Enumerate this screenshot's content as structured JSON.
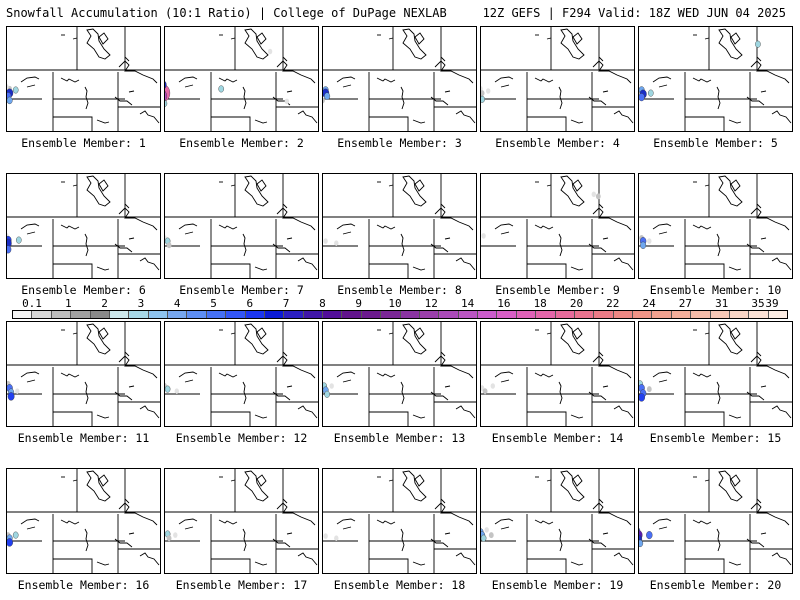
{
  "header": {
    "title_left": "Snowfall Accumulation (10:1 Ratio) | College of DuPage NEXLAB",
    "title_right": "12Z GEFS | F294 Valid: 18Z WED JUN 04 2025"
  },
  "panels": [
    {
      "label": "Ensemble Member: 1",
      "snow": [
        [
          0.2,
          0.48,
          1
        ],
        [
          0.2,
          0.52,
          6
        ],
        [
          0.19,
          0.55,
          4
        ],
        [
          0.2,
          0.59,
          3
        ],
        [
          0.18,
          0.46,
          0.1
        ],
        [
          0.24,
          0.49,
          2
        ]
      ]
    },
    {
      "label": "Ensemble Member: 2",
      "snow": [
        [
          0.1,
          0.48,
          4
        ],
        [
          0.13,
          0.52,
          24
        ],
        [
          0.12,
          0.55,
          16
        ],
        [
          0.11,
          0.58,
          8
        ],
        [
          0.15,
          0.6,
          4
        ],
        [
          0.14,
          0.62,
          2
        ],
        [
          0.16,
          0.49,
          1
        ],
        [
          0.17,
          0.44,
          6
        ],
        [
          0.87,
          0.12,
          0.1
        ],
        [
          0.98,
          0.6,
          0.1
        ],
        [
          0.55,
          0.48,
          2
        ]
      ]
    },
    {
      "label": "Ensemble Member: 3",
      "snow": [
        [
          0.2,
          0.49,
          3
        ],
        [
          0.2,
          0.52,
          6
        ],
        [
          0.21,
          0.55,
          3
        ],
        [
          0.18,
          0.59,
          1
        ],
        [
          0.1,
          0.48,
          0.1
        ]
      ]
    },
    {
      "label": "Ensemble Member: 4",
      "snow": [
        [
          0.18,
          0.48,
          0.1
        ],
        [
          0.19,
          0.52,
          1
        ],
        [
          0.19,
          0.58,
          2
        ],
        [
          0.23,
          0.5,
          0.1
        ]
      ]
    },
    {
      "label": "Ensemble Member: 5",
      "snow": [
        [
          0.2,
          0.49,
          3
        ],
        [
          0.21,
          0.53,
          6
        ],
        [
          0.2,
          0.56,
          4
        ],
        [
          0.26,
          0.52,
          2
        ],
        [
          0.12,
          0.48,
          0.1
        ],
        [
          0.96,
          0.05,
          2
        ]
      ]
    },
    {
      "label": "Ensemble Member: 6",
      "snow": [
        [
          0.18,
          0.48,
          0.1
        ],
        [
          0.19,
          0.52,
          5
        ],
        [
          0.19,
          0.55,
          6
        ],
        [
          0.19,
          0.61,
          4
        ],
        [
          0.26,
          0.52,
          2
        ]
      ]
    },
    {
      "label": "Ensemble Member: 7",
      "snow": [
        [
          0.18,
          0.5,
          0.1
        ],
        [
          0.2,
          0.53,
          2
        ],
        [
          0.21,
          0.57,
          1
        ]
      ]
    },
    {
      "label": "Ensemble Member: 8",
      "snow": [
        [
          0.2,
          0.53,
          0.1
        ],
        [
          0.27,
          0.55,
          0.1
        ]
      ]
    },
    {
      "label": "Ensemble Member: 9",
      "snow": [
        [
          0.2,
          0.48,
          0.1
        ],
        [
          0.92,
          0.08,
          0.1
        ],
        [
          0.95,
          0.1,
          1
        ]
      ]
    },
    {
      "label": "Ensemble Member: 10",
      "snow": [
        [
          0.2,
          0.5,
          1
        ],
        [
          0.21,
          0.53,
          4
        ],
        [
          0.21,
          0.57,
          3
        ],
        [
          0.25,
          0.53,
          0.1
        ]
      ]
    },
    {
      "label": "Ensemble Member: 11",
      "snow": [
        [
          0.19,
          0.48,
          1
        ],
        [
          0.2,
          0.52,
          4
        ],
        [
          0.21,
          0.56,
          3
        ],
        [
          0.21,
          0.6,
          5
        ],
        [
          0.25,
          0.55,
          0.1
        ]
      ]
    },
    {
      "label": "Ensemble Member: 12",
      "snow": [
        [
          0.18,
          0.5,
          1
        ],
        [
          0.2,
          0.53,
          2
        ],
        [
          0.26,
          0.55,
          0.1
        ]
      ]
    },
    {
      "label": "Ensemble Member: 13",
      "snow": [
        [
          0.19,
          0.5,
          2
        ],
        [
          0.2,
          0.54,
          3
        ],
        [
          0.21,
          0.58,
          2
        ],
        [
          0.24,
          0.5,
          0.1
        ]
      ]
    },
    {
      "label": "Ensemble Member: 14",
      "snow": [
        [
          0.19,
          0.52,
          0.1
        ],
        [
          0.21,
          0.55,
          1
        ],
        [
          0.26,
          0.5,
          0.1
        ]
      ]
    },
    {
      "label": "Ensemble Member: 15",
      "snow": [
        [
          0.19,
          0.48,
          2
        ],
        [
          0.2,
          0.52,
          4
        ],
        [
          0.21,
          0.57,
          4
        ],
        [
          0.2,
          0.61,
          5
        ],
        [
          0.25,
          0.53,
          1
        ]
      ]
    },
    {
      "label": "Ensemble Member: 16",
      "snow": [
        [
          0.19,
          0.52,
          1
        ],
        [
          0.2,
          0.55,
          3
        ],
        [
          0.2,
          0.59,
          5
        ],
        [
          0.24,
          0.52,
          2
        ]
      ]
    },
    {
      "label": "Ensemble Member: 17",
      "snow": [
        [
          0.2,
          0.51,
          2
        ],
        [
          0.21,
          0.55,
          1
        ],
        [
          0.25,
          0.52,
          0.1
        ]
      ]
    },
    {
      "label": "Ensemble Member: 18",
      "snow": [
        [
          0.2,
          0.53,
          0.1
        ],
        [
          0.27,
          0.55,
          0.1
        ]
      ]
    },
    {
      "label": "Ensemble Member: 19",
      "snow": [
        [
          0.18,
          0.49,
          3
        ],
        [
          0.19,
          0.52,
          3
        ],
        [
          0.2,
          0.55,
          2
        ],
        [
          0.25,
          0.52,
          1
        ],
        [
          0.22,
          0.47,
          0.1
        ]
      ]
    },
    {
      "label": "Ensemble Member: 20",
      "snow": [
        [
          0.17,
          0.48,
          4
        ],
        [
          0.18,
          0.52,
          8
        ],
        [
          0.18,
          0.56,
          6
        ],
        [
          0.19,
          0.6,
          3
        ],
        [
          0.25,
          0.52,
          4
        ]
      ]
    }
  ],
  "legend": {
    "labels": [
      "0.1",
      "1",
      "2",
      "3",
      "4",
      "5",
      "6",
      "7",
      "8",
      "9",
      "10",
      "12",
      "14",
      "16",
      "18",
      "20",
      "22",
      "24",
      "27",
      "31",
      "35",
      "39"
    ],
    "colors": [
      "#f4f4f4",
      "#d7d7d7",
      "#bdbdbd",
      "#a0a0a0",
      "#8a8a8a",
      "#cde8ec",
      "#a7d7e6",
      "#8ec3ee",
      "#77a7ef",
      "#5e8ef4",
      "#4671f5",
      "#3356f6",
      "#1c36f0",
      "#0c1bd6",
      "#2c1fc1",
      "#4016a8",
      "#520f99",
      "#61148c",
      "#6b1a8d",
      "#7a2796",
      "#8a34a0",
      "#9a3fab",
      "#aa4ab8",
      "#bb56c3",
      "#cc5ccc",
      "#d95fc6",
      "#e062b8",
      "#e466aa",
      "#e76b9c",
      "#ea738f",
      "#ec7c87",
      "#ee8884",
      "#f09487",
      "#f1a18f",
      "#f3ae9b",
      "#f5bca9",
      "#f7c9b8",
      "#f9d5c6",
      "#fbe1d5",
      "#fdede4"
    ]
  },
  "snow_colors": {
    "0.1": "#e3e3e3",
    "1": "#c4c4c4",
    "2": "#9fd6e0",
    "3": "#6fa7ef",
    "4": "#4a6ff5",
    "5": "#2240f0",
    "6": "#1a2dc7",
    "8": "#5a1bb0",
    "16": "#b64bbf",
    "24": "#e668a8"
  }
}
